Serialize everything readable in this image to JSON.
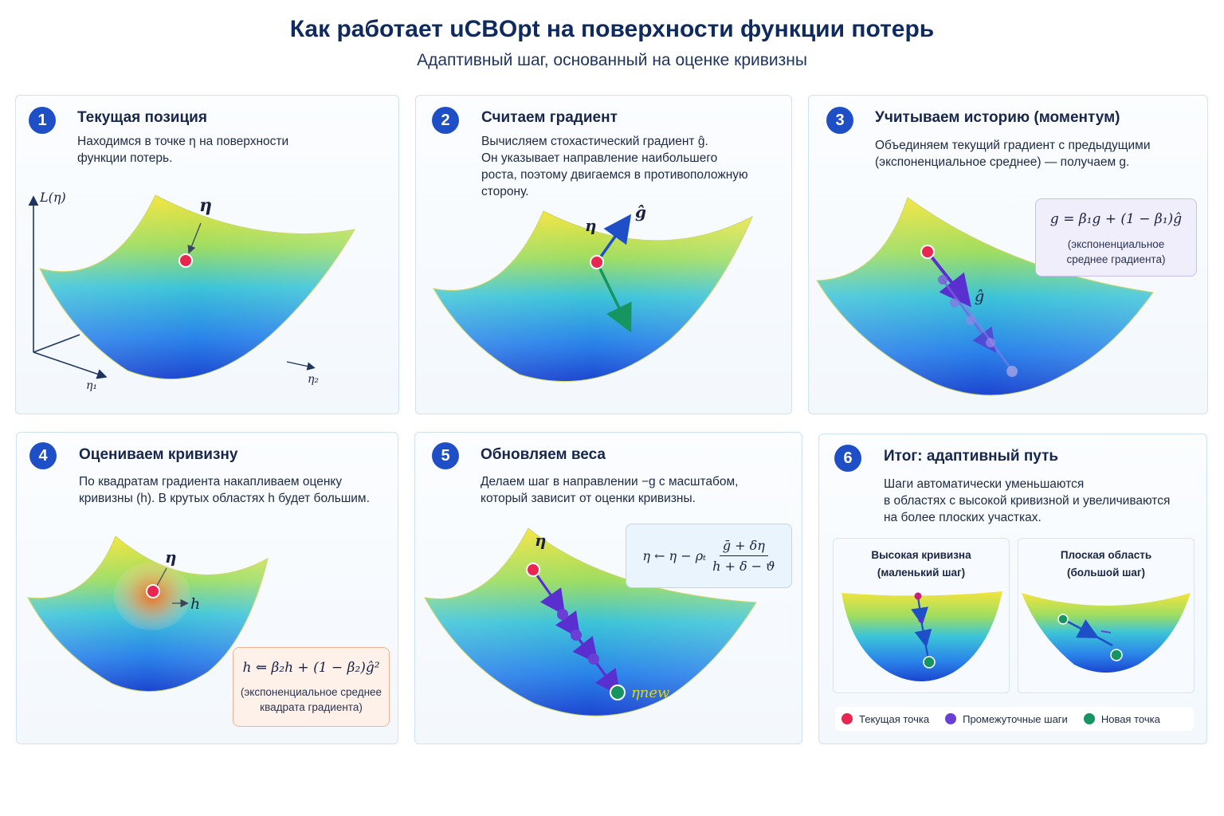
{
  "header": {
    "title": "Как работает uCBOpt на поверхности функции потерь",
    "subtitle": "Адаптивный шаг, основанный на оценке кривизны"
  },
  "panels": [
    {
      "number": "1",
      "title": "Текущая позиция",
      "desc_lines": [
        "Находимся в точке η на поверхности",
        "функции потерь."
      ],
      "labels": {
        "axis_z": "L(η)",
        "axis_x": "η₁",
        "axis_y": "η₂",
        "point": "η"
      }
    },
    {
      "number": "2",
      "title": "Считаем градиент",
      "desc_lines": [
        "Вычисляем стохастический градиент ĝ.",
        "Он указывает направление наибольшего",
        "роста, поэтому двигаемся в противоположную",
        "сторону."
      ],
      "labels": {
        "point": "η",
        "grad": "ĝ"
      }
    },
    {
      "number": "3",
      "title": "Учитываем историю (моментум)",
      "desc_lines": [
        "Объединяем текущий градиент с предыдущими",
        "(экспоненциальное среднее) — получаем g."
      ],
      "labels": {
        "grad": "ĝ"
      },
      "formula": "g = β₁g + (1 − β₁)ĝ",
      "formula_note": [
        "(экспоненциальное",
        "среднее градиента)"
      ]
    },
    {
      "number": "4",
      "title": "Оцениваем кривизну",
      "desc_lines": [
        "По квадратам градиента накапливаем оценку",
        "кривизны (h). В крутых областях h будет большим."
      ],
      "labels": {
        "point": "η",
        "h": "h"
      },
      "formula": "h ⇐ β₂h + (1 − β₂)ĝ²",
      "formula_note": [
        "(экспоненциальное среднее",
        "квадрата градиента)"
      ]
    },
    {
      "number": "5",
      "title": "Обновляем веса",
      "desc_lines": [
        "Делаем шаг в направлении −g с масштабом,",
        "который зависит от оценки кривизны."
      ],
      "labels": {
        "point": "η",
        "new_point": "ηnew"
      },
      "formula": {
        "lhs": "η ← η − ρₜ",
        "num": "ḡ + δη",
        "den": "h + δ − ϑ"
      }
    },
    {
      "number": "6",
      "title": "Итог: адаптивный путь",
      "desc_lines": [
        "Шаги автоматически уменьшаются",
        "в областях с высокой кривизной и увеличиваются",
        "на более плоских участках."
      ],
      "mini_left": [
        "Высокая кривизна",
        "(маленький шаг)"
      ],
      "mini_right": [
        "Плоская область",
        "(большой шаг)"
      ],
      "legend": [
        {
          "label": "Текущая точка",
          "color": "#e8264f"
        },
        {
          "label": "Промежуточные шаги",
          "color": "#6a3fd6"
        },
        {
          "label": "Новая точка",
          "color": "#169560"
        }
      ]
    }
  ],
  "colors": {
    "accent": "#1e4fc7",
    "current_point": "#e8264f",
    "intermediate": "#6a3fd6",
    "new_point": "#169560",
    "surface_top": "#f2e23a",
    "surface_bottom": "#1e4fd8"
  }
}
